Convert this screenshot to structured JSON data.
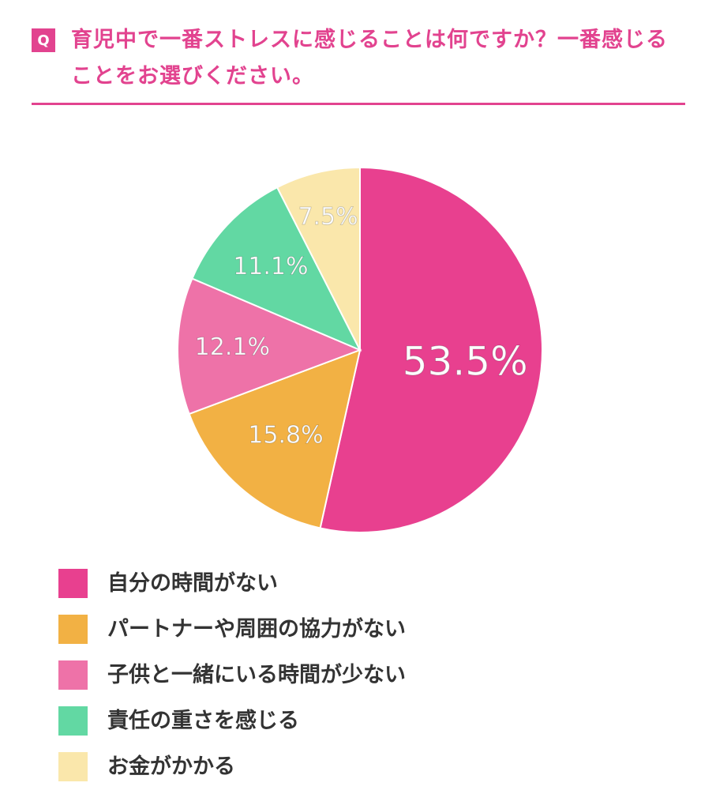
{
  "question": {
    "badge": "Q",
    "text": "育児中で一番ストレスに感じることは何ですか？一番感じることをお選びください。"
  },
  "colors": {
    "accent": "#e2438f",
    "slices": [
      "#e8408f",
      "#f2b144",
      "#ee72a8",
      "#62d8a3",
      "#fae7ab"
    ]
  },
  "chart_data": {
    "type": "pie",
    "start_angle": "12 o'clock",
    "direction": "clockwise",
    "categories": [
      "自分の時間がない",
      "パートナーや周囲の協力がない",
      "子供と一緒にいる時間が少ない",
      "責任の重さを感じる",
      "お金がかかる"
    ],
    "values": [
      53.5,
      15.8,
      12.1,
      11.1,
      7.5
    ],
    "labels": [
      "53.5%",
      "15.8%",
      "12.1%",
      "11.1%",
      "7.5%"
    ],
    "legend_position": "bottom"
  }
}
